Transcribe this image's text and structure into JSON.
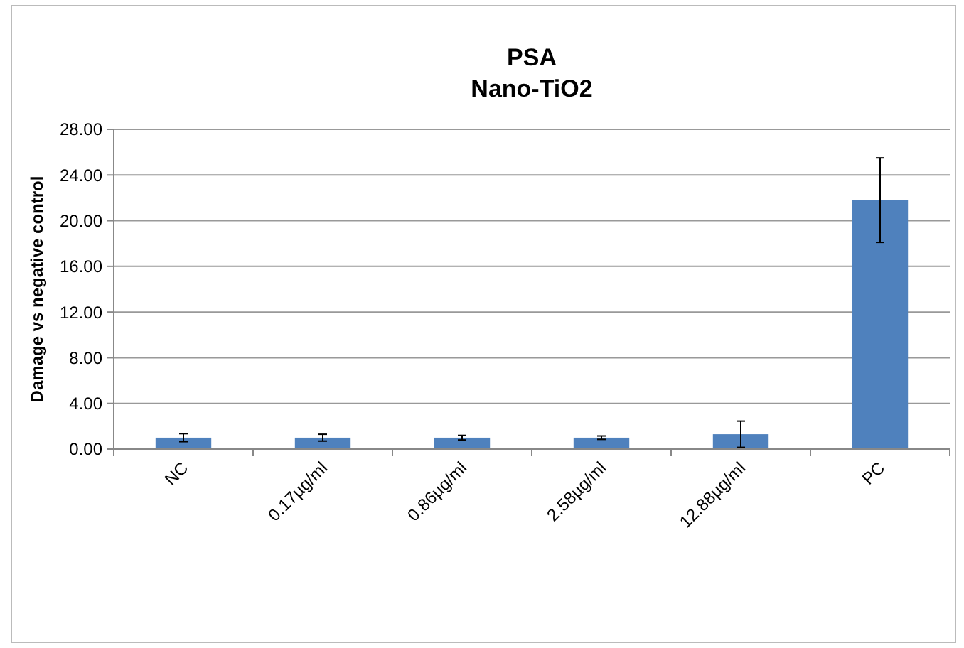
{
  "chart_data": {
    "type": "bar",
    "title": "PSA",
    "subtitle": "Nano-TiO2",
    "ylabel": "Damage vs  negative control",
    "categories": [
      "NC",
      "0.17µg/ml",
      "0.86µg/ml",
      "2.58µg/ml",
      "12.88µg/ml",
      "PC"
    ],
    "values": [
      1.0,
      1.0,
      1.0,
      1.0,
      1.3,
      21.8
    ],
    "errors": [
      0.35,
      0.3,
      0.2,
      0.15,
      1.15,
      3.7
    ],
    "color": "#4f81bd",
    "ylim": [
      0,
      28
    ],
    "yticks": [
      {
        "value": 0,
        "label": "0.00"
      },
      {
        "value": 4,
        "label": "4.00"
      },
      {
        "value": 8,
        "label": "8.00"
      },
      {
        "value": 12,
        "label": "12.00"
      },
      {
        "value": 16,
        "label": "16.00"
      },
      {
        "value": 20,
        "label": "20.00"
      },
      {
        "value": 24,
        "label": "24.00"
      },
      {
        "value": 28,
        "label": "28.00"
      }
    ],
    "grid": "y"
  }
}
